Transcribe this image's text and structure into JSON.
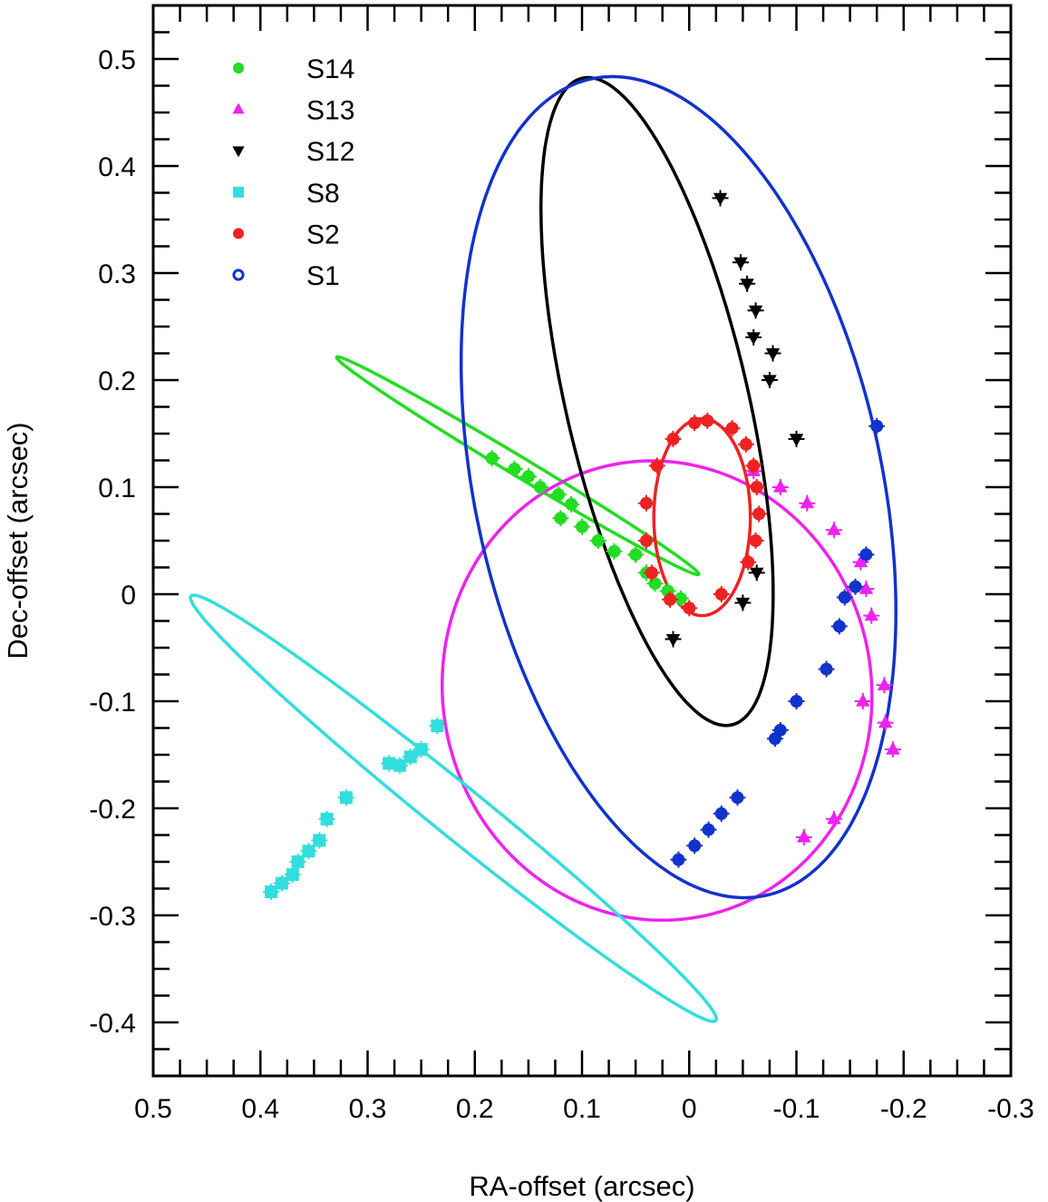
{
  "chart_data": {
    "type": "scatter",
    "title": "",
    "xlabel": "RA-offset (arcsec)",
    "ylabel": "Dec-offset (arcsec)",
    "xlim": [
      0.5,
      -0.3
    ],
    "ylim": [
      -0.45,
      0.55
    ],
    "x_reversed": true,
    "x_ticks": [
      "0.5",
      "0.4",
      "0.3",
      "0.2",
      "0.1",
      "0",
      "-0.1",
      "-0.2",
      "-0.3"
    ],
    "x_tick_values": [
      0.5,
      0.4,
      0.3,
      0.2,
      0.1,
      0,
      -0.1,
      -0.2,
      -0.3
    ],
    "y_ticks": [
      "0.5",
      "0.4",
      "0.3",
      "0.2",
      "0.1",
      "0",
      "-0.1",
      "-0.2",
      "-0.3",
      "-0.4"
    ],
    "y_tick_values": [
      0.5,
      0.4,
      0.3,
      0.2,
      0.1,
      0,
      -0.1,
      -0.2,
      -0.3,
      -0.4
    ],
    "grid": false,
    "legend_position": "top-left",
    "series": [
      {
        "name": "S14",
        "color": "#22dd22",
        "marker": "circle",
        "orbit": {
          "center": [
            0.16,
            0.12
          ],
          "semi_major": 0.197,
          "semi_minor": 0.009,
          "angle_deg": 31
        },
        "points": [
          [
            0.184,
            0.127
          ],
          [
            0.163,
            0.117
          ],
          [
            0.15,
            0.11
          ],
          [
            0.139,
            0.1
          ],
          [
            0.122,
            0.093
          ],
          [
            0.11,
            0.084
          ],
          [
            0.12,
            0.071
          ],
          [
            0.1,
            0.063
          ],
          [
            0.085,
            0.05
          ],
          [
            0.07,
            0.04
          ],
          [
            0.05,
            0.037
          ],
          [
            0.04,
            0.02
          ],
          [
            0.032,
            0.01
          ],
          [
            0.02,
            0.003
          ],
          [
            0.008,
            -0.004
          ]
        ]
      },
      {
        "name": "S13",
        "color": "#ee22ee",
        "marker": "triangle-up",
        "orbit": {
          "center": [
            0.03,
            -0.09
          ],
          "semi_major": 0.215,
          "semi_minor": 0.2,
          "angle_deg": 80
        },
        "points": [
          [
            -0.06,
            0.115
          ],
          [
            -0.085,
            0.1
          ],
          [
            -0.11,
            0.085
          ],
          [
            -0.135,
            0.06
          ],
          [
            -0.16,
            0.03
          ],
          [
            -0.165,
            0.005
          ],
          [
            -0.17,
            -0.02
          ],
          [
            -0.182,
            -0.085
          ],
          [
            -0.162,
            -0.1
          ],
          [
            -0.183,
            -0.12
          ],
          [
            -0.19,
            -0.145
          ],
          [
            -0.135,
            -0.21
          ],
          [
            -0.107,
            -0.227
          ]
        ]
      },
      {
        "name": "S12",
        "color": "#000000",
        "marker": "triangle-down",
        "orbit": {
          "center": [
            0.03,
            0.18
          ],
          "semi_major": 0.31,
          "semi_minor": 0.085,
          "angle_deg": 77
        },
        "points": [
          [
            -0.029,
            0.37
          ],
          [
            -0.048,
            0.31
          ],
          [
            -0.054,
            0.29
          ],
          [
            -0.062,
            0.265
          ],
          [
            -0.06,
            0.24
          ],
          [
            -0.078,
            0.225
          ],
          [
            -0.075,
            0.2
          ],
          [
            -0.1,
            0.145
          ],
          [
            -0.063,
            0.02
          ],
          [
            -0.05,
            -0.008
          ],
          [
            0.015,
            -0.042
          ]
        ]
      },
      {
        "name": "S8",
        "color": "#33dddd",
        "marker": "square",
        "orbit": {
          "center": [
            0.22,
            -0.2
          ],
          "semi_major": 0.315,
          "semi_minor": 0.024,
          "angle_deg": 39
        },
        "points": [
          [
            0.235,
            -0.123
          ],
          [
            0.25,
            -0.145
          ],
          [
            0.26,
            -0.152
          ],
          [
            0.27,
            -0.16
          ],
          [
            0.28,
            -0.158
          ],
          [
            0.32,
            -0.19
          ],
          [
            0.338,
            -0.21
          ],
          [
            0.345,
            -0.23
          ],
          [
            0.355,
            -0.24
          ],
          [
            0.365,
            -0.25
          ],
          [
            0.37,
            -0.262
          ],
          [
            0.38,
            -0.27
          ],
          [
            0.39,
            -0.278
          ]
        ]
      },
      {
        "name": "S2",
        "color": "#ee2222",
        "marker": "circle",
        "orbit": {
          "center": [
            -0.012,
            0.072
          ],
          "semi_major": 0.092,
          "semi_minor": 0.045,
          "angle_deg": 90
        },
        "points": [
          [
            -0.017,
            0.162
          ],
          [
            -0.04,
            0.155
          ],
          [
            -0.053,
            0.14
          ],
          [
            -0.06,
            0.12
          ],
          [
            -0.063,
            0.1
          ],
          [
            -0.065,
            0.075
          ],
          [
            -0.062,
            0.05
          ],
          [
            -0.055,
            0.03
          ],
          [
            -0.03,
            0.0
          ],
          [
            0.0,
            -0.013
          ],
          [
            0.018,
            -0.005
          ],
          [
            0.035,
            0.02
          ],
          [
            0.04,
            0.05
          ],
          [
            0.04,
            0.085
          ],
          [
            0.03,
            0.12
          ],
          [
            0.015,
            0.145
          ],
          [
            -0.005,
            0.16
          ]
        ]
      },
      {
        "name": "S1",
        "color": "#1133cc",
        "marker": "circle-open",
        "orbit": {
          "center": [
            0.01,
            0.1
          ],
          "semi_major": 0.39,
          "semi_minor": 0.19,
          "angle_deg": 78
        },
        "points": [
          [
            -0.175,
            0.157
          ],
          [
            -0.165,
            0.037
          ],
          [
            -0.155,
            0.007
          ],
          [
            -0.145,
            -0.003
          ],
          [
            -0.14,
            -0.03
          ],
          [
            -0.128,
            -0.07
          ],
          [
            -0.1,
            -0.1
          ],
          [
            -0.085,
            -0.127
          ],
          [
            -0.08,
            -0.135
          ],
          [
            -0.045,
            -0.19
          ],
          [
            -0.03,
            -0.205
          ],
          [
            -0.018,
            -0.22
          ],
          [
            -0.005,
            -0.235
          ],
          [
            0.01,
            -0.248
          ]
        ]
      }
    ]
  }
}
